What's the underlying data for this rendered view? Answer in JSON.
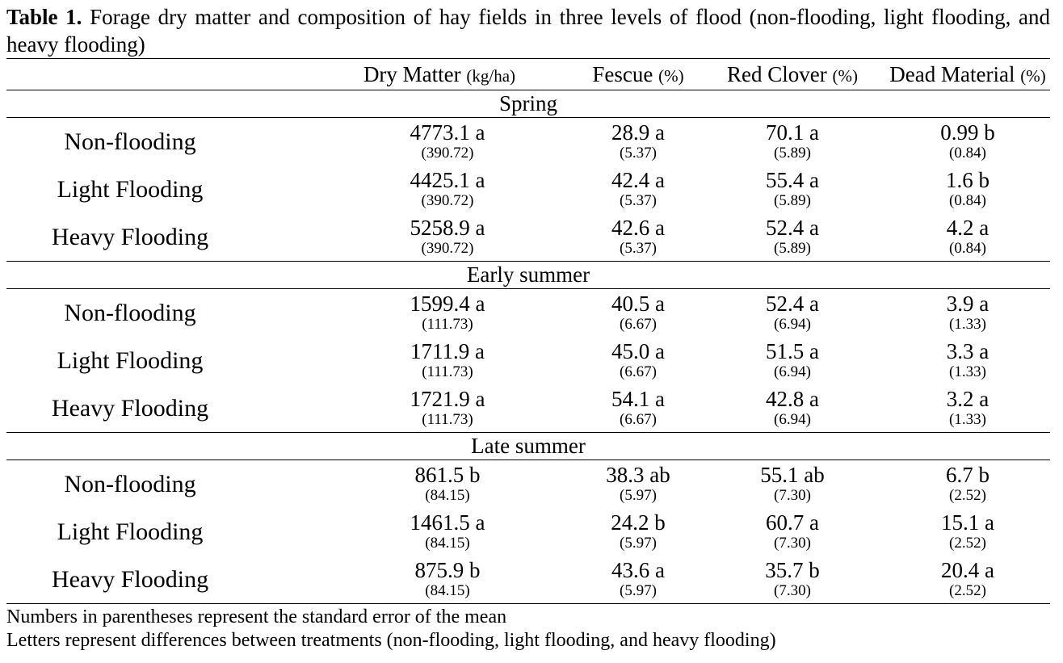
{
  "caption": {
    "label": "Table 1.",
    "text": "Forage dry matter and composition of hay fields in three levels of flood (non-flooding, light flooding, and heavy flooding)"
  },
  "columns": [
    {
      "name": "Dry Matter",
      "unit": "(kg/ha)"
    },
    {
      "name": "Fescue",
      "unit": "(%)"
    },
    {
      "name": "Red Clover",
      "unit": "(%)"
    },
    {
      "name": "Dead Material",
      "unit": "(%)"
    }
  ],
  "sections": [
    {
      "title": "Spring",
      "rows": [
        {
          "treatment": "Non-flooding",
          "values": [
            {
              "mean": "4773.1 a",
              "se": "(390.72)"
            },
            {
              "mean": "28.9 a",
              "se": "(5.37)"
            },
            {
              "mean": "70.1 a",
              "se": "(5.89)"
            },
            {
              "mean": "0.99 b",
              "se": "(0.84)"
            }
          ]
        },
        {
          "treatment": "Light Flooding",
          "values": [
            {
              "mean": "4425.1 a",
              "se": "(390.72)"
            },
            {
              "mean": "42.4 a",
              "se": "(5.37)"
            },
            {
              "mean": "55.4 a",
              "se": "(5.89)"
            },
            {
              "mean": "1.6 b",
              "se": "(0.84)"
            }
          ]
        },
        {
          "treatment": "Heavy Flooding",
          "values": [
            {
              "mean": "5258.9 a",
              "se": "(390.72)"
            },
            {
              "mean": "42.6 a",
              "se": "(5.37)"
            },
            {
              "mean": "52.4 a",
              "se": "(5.89)"
            },
            {
              "mean": "4.2 a",
              "se": "(0.84)"
            }
          ]
        }
      ]
    },
    {
      "title": "Early summer",
      "rows": [
        {
          "treatment": "Non-flooding",
          "values": [
            {
              "mean": "1599.4 a",
              "se": "(111.73)"
            },
            {
              "mean": "40.5 a",
              "se": "(6.67)"
            },
            {
              "mean": "52.4 a",
              "se": "(6.94)"
            },
            {
              "mean": "3.9 a",
              "se": "(1.33)"
            }
          ]
        },
        {
          "treatment": "Light Flooding",
          "values": [
            {
              "mean": "1711.9 a",
              "se": "(111.73)"
            },
            {
              "mean": "45.0 a",
              "se": "(6.67)"
            },
            {
              "mean": "51.5 a",
              "se": "(6.94)"
            },
            {
              "mean": "3.3 a",
              "se": "(1.33)"
            }
          ]
        },
        {
          "treatment": "Heavy Flooding",
          "values": [
            {
              "mean": "1721.9 a",
              "se": "(111.73)"
            },
            {
              "mean": "54.1 a",
              "se": "(6.67)"
            },
            {
              "mean": "42.8 a",
              "se": "(6.94)"
            },
            {
              "mean": "3.2 a",
              "se": "(1.33)"
            }
          ]
        }
      ]
    },
    {
      "title": "Late summer",
      "rows": [
        {
          "treatment": "Non-flooding",
          "values": [
            {
              "mean": "861.5 b",
              "se": "(84.15)"
            },
            {
              "mean": "38.3 ab",
              "se": "(5.97)"
            },
            {
              "mean": "55.1 ab",
              "se": "(7.30)"
            },
            {
              "mean": "6.7 b",
              "se": "(2.52)"
            }
          ]
        },
        {
          "treatment": "Light Flooding",
          "values": [
            {
              "mean": "1461.5 a",
              "se": "(84.15)"
            },
            {
              "mean": "24.2 b",
              "se": "(5.97)"
            },
            {
              "mean": "60.7 a",
              "se": "(7.30)"
            },
            {
              "mean": "15.1 a",
              "se": "(2.52)"
            }
          ]
        },
        {
          "treatment": "Heavy Flooding",
          "values": [
            {
              "mean": "875.9 b",
              "se": "(84.15)"
            },
            {
              "mean": "43.6 a",
              "se": "(5.97)"
            },
            {
              "mean": "35.7 b",
              "se": "(7.30)"
            },
            {
              "mean": "20.4 a",
              "se": "(2.52)"
            }
          ]
        }
      ]
    }
  ],
  "notes": [
    "Numbers in parentheses represent the standard error of the mean",
    "Letters represent differences between treatments (non-flooding, light flooding, and heavy flooding)"
  ]
}
